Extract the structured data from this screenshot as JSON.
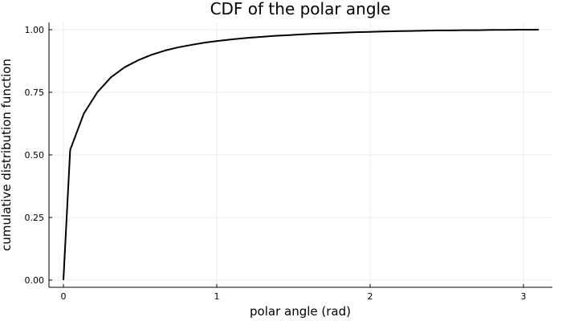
{
  "chart_data": {
    "type": "line",
    "title": "CDF of the polar angle",
    "xlabel": "polar angle (rad)",
    "ylabel": "cumulative distribution function",
    "xlim": [
      -0.093,
      3.2
    ],
    "ylim": [
      -0.03,
      1.03
    ],
    "xticks": [
      0,
      1,
      2,
      3
    ],
    "xtick_labels": [
      "0",
      "1",
      "2",
      "3"
    ],
    "yticks": [
      0,
      0.25,
      0.5,
      0.75,
      1.0
    ],
    "ytick_labels": [
      "0.00",
      "0.25",
      "0.50",
      "0.75",
      "1.00"
    ],
    "grid": true,
    "legend": "none",
    "series": [
      {
        "name": "CDF",
        "color": "#000000",
        "x": [
          0,
          0.044,
          0.133,
          0.221,
          0.31,
          0.399,
          0.487,
          0.576,
          0.664,
          0.753,
          0.842,
          0.93,
          1.019,
          1.108,
          1.196,
          1.285,
          1.373,
          1.462,
          1.551,
          1.639,
          1.728,
          1.816,
          1.905,
          1.994,
          2.082,
          2.171,
          2.259,
          2.348,
          2.437,
          2.525,
          2.614,
          2.702,
          2.791,
          2.88,
          2.968,
          3.1
        ],
        "values": [
          0,
          0.52,
          0.665,
          0.75,
          0.81,
          0.85,
          0.878,
          0.9,
          0.917,
          0.93,
          0.94,
          0.949,
          0.956,
          0.962,
          0.967,
          0.971,
          0.975,
          0.978,
          0.981,
          0.984,
          0.986,
          0.988,
          0.99,
          0.991,
          0.993,
          0.994,
          0.995,
          0.996,
          0.997,
          0.997,
          0.998,
          0.998,
          0.999,
          0.999,
          1.0,
          1.0
        ]
      }
    ]
  }
}
